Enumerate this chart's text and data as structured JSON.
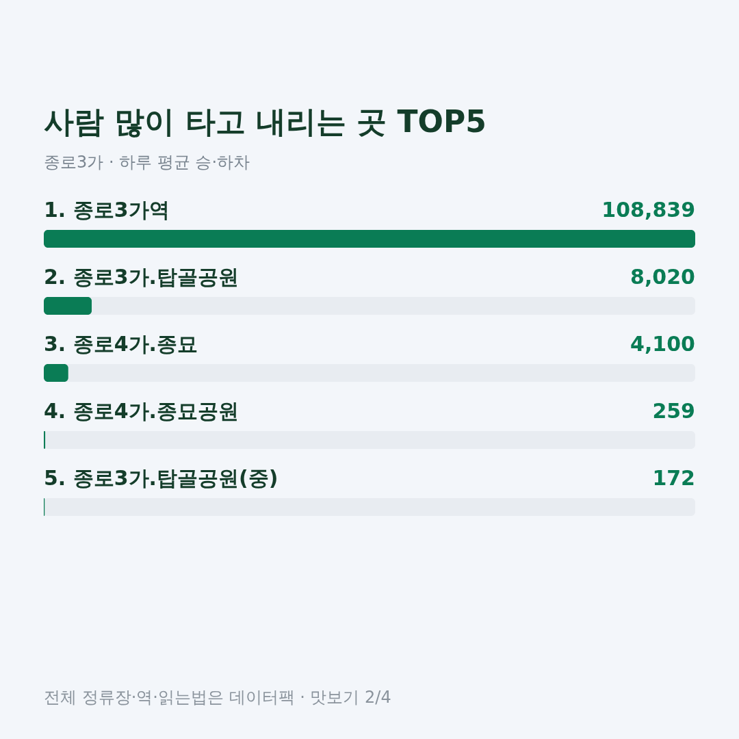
{
  "chart_data": {
    "type": "bar",
    "orientation": "horizontal",
    "title": "사람 많이 타고 내리는 곳 TOP5",
    "subtitle": "종로3가 · 하루 평균 승·하차",
    "categories": [
      "1. 종로3가역",
      "2. 종로3가.탑골공원",
      "3. 종로4가.종묘",
      "4. 종로4가.종묘공원",
      "5. 종로3가.탑골공원(중)"
    ],
    "values": [
      108839,
      8020,
      4100,
      259,
      172
    ],
    "value_labels": [
      "108,839",
      "8,020",
      "4,100",
      "259",
      "172"
    ],
    "color": "#0a7c55",
    "annotations": [
      "전체 정류장·역·읽는법은 데이터팩 · 맛보기 2/4"
    ]
  }
}
